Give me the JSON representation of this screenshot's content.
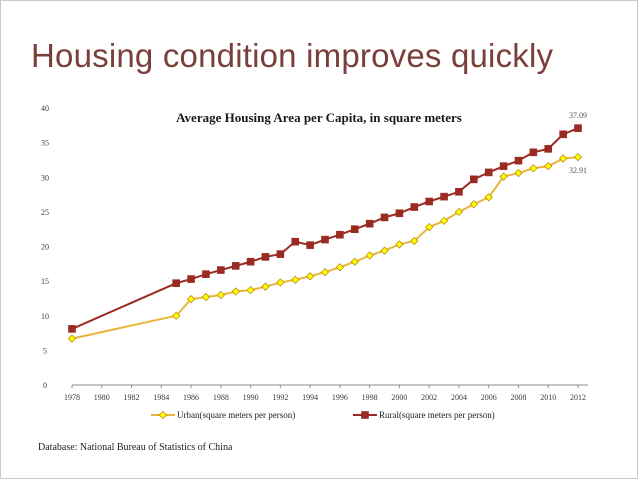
{
  "slide": {
    "title": "Housing condition improves quickly",
    "source": "Database: National Bureau of Statistics of China"
  },
  "colors": {
    "urban_line": "#e8b63a",
    "urban_marker": "#ffff00",
    "rural": "#992b22",
    "title": "#7a3f3a"
  },
  "chart_data": {
    "type": "line",
    "title": "Average Housing Area per Capita, in square meters",
    "xlabel": "",
    "ylabel": "",
    "x": [
      1978,
      1985,
      1986,
      1987,
      1988,
      1989,
      1990,
      1991,
      1992,
      1993,
      1994,
      1995,
      1996,
      1997,
      1998,
      1999,
      2000,
      2001,
      2002,
      2003,
      2004,
      2005,
      2006,
      2007,
      2008,
      2009,
      2010,
      2011,
      2012
    ],
    "xlim": [
      1978,
      2012
    ],
    "x_ticks": [
      1978,
      1980,
      1982,
      1984,
      1986,
      1988,
      1990,
      1992,
      1994,
      1996,
      1998,
      2000,
      2002,
      2004,
      2006,
      2008,
      2010,
      2012
    ],
    "ylim": [
      0,
      40
    ],
    "y_ticks": [
      0,
      5,
      10,
      15,
      20,
      25,
      30,
      35,
      40
    ],
    "grid": false,
    "legend_position": "bottom",
    "series": [
      {
        "name": "Urban(square meters per person)",
        "marker": "diamond",
        "values": [
          6.7,
          10.0,
          12.4,
          12.7,
          13.0,
          13.5,
          13.7,
          14.2,
          14.8,
          15.2,
          15.7,
          16.3,
          17.0,
          17.8,
          18.7,
          19.4,
          20.3,
          20.8,
          22.8,
          23.7,
          25.0,
          26.1,
          27.1,
          30.1,
          30.6,
          31.3,
          31.6,
          32.7,
          32.91
        ],
        "end_label": "32.91"
      },
      {
        "name": "Rural(square meters per person)",
        "marker": "square",
        "values": [
          8.1,
          14.7,
          15.3,
          16.0,
          16.6,
          17.2,
          17.8,
          18.5,
          18.9,
          20.7,
          20.2,
          21.0,
          21.7,
          22.5,
          23.3,
          24.2,
          24.8,
          25.7,
          26.5,
          27.2,
          27.9,
          29.7,
          30.7,
          31.6,
          32.4,
          33.6,
          34.1,
          36.2,
          37.09
        ],
        "end_label": "37.09"
      }
    ]
  }
}
